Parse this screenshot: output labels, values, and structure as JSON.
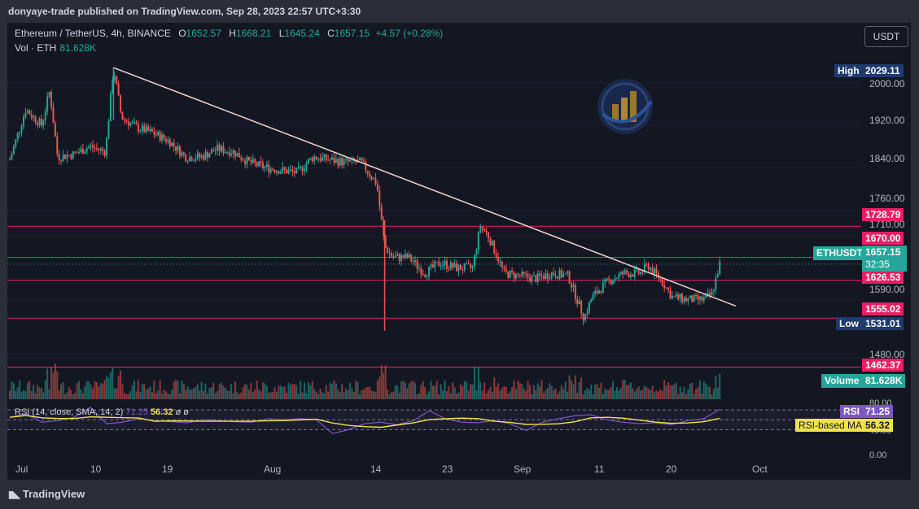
{
  "header": {
    "published": "donyaye-trade published on TradingView.com, Sep 28, 2023 22:57 UTC+3:30"
  },
  "footer": {
    "brand": "TradingView"
  },
  "legend": {
    "symbol": "Ethereum / TetherUS, 4h, BINANCE",
    "open_key": "O",
    "open": "1652.57",
    "high_key": "H",
    "high": "1668.21",
    "low_key": "L",
    "low": "1645.24",
    "close_key": "C",
    "close": "1657.15",
    "change": "+4.57 (+0.28%)",
    "vol_label": "Vol · ETH",
    "vol_value": "81.628K"
  },
  "currency_button": "USDT",
  "price_axis": {
    "ticks": [
      "2000.00",
      "1920.00",
      "1840.00",
      "1760.00",
      "1710.00",
      "1590.00",
      "1480.00"
    ],
    "high": {
      "label": "High",
      "value": "2029.11"
    },
    "low": {
      "label": "Low",
      "value": "1531.01"
    },
    "levels": [
      "1728.79",
      "1670.00",
      "1626.53",
      "1555.02",
      "1462.37"
    ],
    "last": {
      "label": "ETHUSDT",
      "value": "1657.15",
      "countdown": "32:35"
    },
    "volume": {
      "label": "Volume",
      "value": "81.628K"
    }
  },
  "rsi": {
    "legend": "RSI (14, close, SMA, 14, 2)",
    "rsi_value_inline": "71.25",
    "ma_value_inline": "56.32",
    "tail": "ø ø",
    "axis_top": "80.00",
    "axis_mid": "40.00",
    "axis_bottom": "0.00",
    "tag_rsi": {
      "label": "RSI",
      "value": "71.25"
    },
    "tag_ma": {
      "label": "RSI-based MA",
      "value": "56.32"
    }
  },
  "time_axis": [
    "Jul",
    "10",
    "19",
    "Aug",
    "14",
    "23",
    "Sep",
    "11",
    "20",
    "Oct"
  ],
  "colors": {
    "up": "#26a69a",
    "down": "#ef5350",
    "level": "#e91e63",
    "trendline": "#f3d3cd",
    "rsi": "#7e57c2",
    "rsi_ma": "#f0e24b",
    "high_low": "#1e3a6e"
  },
  "chart_data": {
    "type": "candlestick",
    "symbol": "Ethereum / TetherUS",
    "interval": "4h",
    "ylim": [
      1435,
      2050
    ],
    "x_ticks": [
      "Jul",
      "10",
      "19",
      "Aug",
      "14",
      "23",
      "Sep",
      "11",
      "20",
      "Oct"
    ],
    "horizontal_levels": [
      1728.79,
      1670.0,
      1626.53,
      1555.02,
      1462.37
    ],
    "trendline": {
      "start_date": "2023-07-14",
      "start_price": 2029,
      "end_date": "2023-09-30",
      "end_price": 1578
    },
    "price_path": [
      {
        "date": "2023-07-01",
        "price": 1855
      },
      {
        "date": "2023-07-03",
        "price": 1950
      },
      {
        "date": "2023-07-05",
        "price": 1920
      },
      {
        "date": "2023-07-06",
        "price": 1985
      },
      {
        "date": "2023-07-07",
        "price": 1860
      },
      {
        "date": "2023-07-09",
        "price": 1865
      },
      {
        "date": "2023-07-11",
        "price": 1880
      },
      {
        "date": "2023-07-13",
        "price": 1870
      },
      {
        "date": "2023-07-14",
        "price": 2029
      },
      {
        "date": "2023-07-15",
        "price": 1935
      },
      {
        "date": "2023-07-17",
        "price": 1915
      },
      {
        "date": "2023-07-19",
        "price": 1905
      },
      {
        "date": "2023-07-21",
        "price": 1890
      },
      {
        "date": "2023-07-23",
        "price": 1860
      },
      {
        "date": "2023-07-25",
        "price": 1860
      },
      {
        "date": "2023-07-27",
        "price": 1875
      },
      {
        "date": "2023-07-29",
        "price": 1870
      },
      {
        "date": "2023-07-31",
        "price": 1850
      },
      {
        "date": "2023-08-02",
        "price": 1840
      },
      {
        "date": "2023-08-04",
        "price": 1835
      },
      {
        "date": "2023-08-06",
        "price": 1830
      },
      {
        "date": "2023-08-08",
        "price": 1860
      },
      {
        "date": "2023-08-10",
        "price": 1855
      },
      {
        "date": "2023-08-12",
        "price": 1850
      },
      {
        "date": "2023-08-14",
        "price": 1850
      },
      {
        "date": "2023-08-16",
        "price": 1810
      },
      {
        "date": "2023-08-17",
        "price": 1690
      },
      {
        "date": "2023-08-18",
        "price": 1670
      },
      {
        "date": "2023-08-20",
        "price": 1670
      },
      {
        "date": "2023-08-22",
        "price": 1640
      },
      {
        "date": "2023-08-24",
        "price": 1660
      },
      {
        "date": "2023-08-26",
        "price": 1650
      },
      {
        "date": "2023-08-28",
        "price": 1650
      },
      {
        "date": "2023-08-29",
        "price": 1730
      },
      {
        "date": "2023-08-30",
        "price": 1710
      },
      {
        "date": "2023-09-01",
        "price": 1640
      },
      {
        "date": "2023-09-03",
        "price": 1635
      },
      {
        "date": "2023-09-05",
        "price": 1630
      },
      {
        "date": "2023-09-07",
        "price": 1640
      },
      {
        "date": "2023-09-09",
        "price": 1635
      },
      {
        "date": "2023-09-11",
        "price": 1555
      },
      {
        "date": "2023-09-12",
        "price": 1595
      },
      {
        "date": "2023-09-14",
        "price": 1625
      },
      {
        "date": "2023-09-16",
        "price": 1640
      },
      {
        "date": "2023-09-18",
        "price": 1640
      },
      {
        "date": "2023-09-19",
        "price": 1655
      },
      {
        "date": "2023-09-21",
        "price": 1620
      },
      {
        "date": "2023-09-22",
        "price": 1595
      },
      {
        "date": "2023-09-24",
        "price": 1590
      },
      {
        "date": "2023-09-26",
        "price": 1590
      },
      {
        "date": "2023-09-27",
        "price": 1600
      },
      {
        "date": "2023-09-28",
        "price": 1657
      }
    ],
    "rsi_series": [
      55,
      62,
      45,
      48,
      55,
      75,
      42,
      45,
      52,
      48,
      46,
      44,
      50,
      48,
      46,
      45,
      52,
      50,
      52,
      50,
      22,
      30,
      42,
      45,
      40,
      48,
      68,
      52,
      45,
      44,
      48,
      42,
      28,
      45,
      52,
      58,
      60,
      50,
      45,
      42,
      44,
      40,
      48,
      52,
      71
    ]
  }
}
